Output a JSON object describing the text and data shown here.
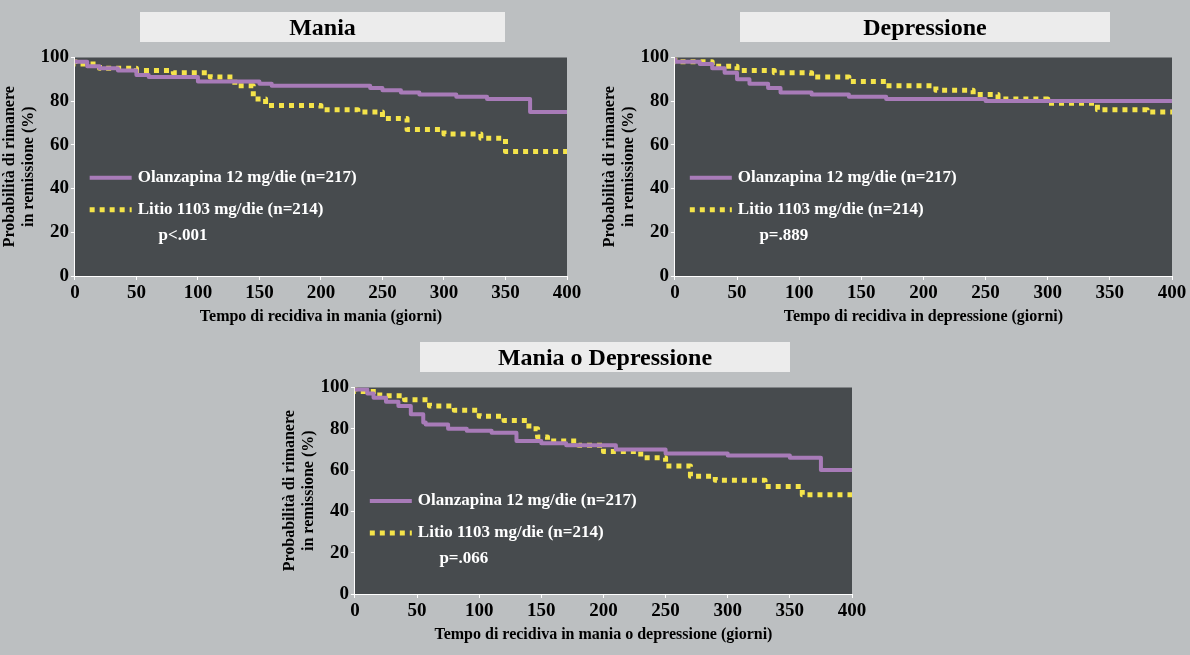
{
  "chart_data": [
    {
      "type": "step",
      "title": "Mania",
      "xlabel": "Tempo di recidiva in mania (giorni)",
      "ylabel": "Probabilità di rimanere\nin remissione (%)",
      "xlim": [
        0,
        400
      ],
      "xticks": [
        0,
        50,
        100,
        150,
        200,
        250,
        300,
        350,
        400
      ],
      "ylim": [
        0,
        100
      ],
      "yticks": [
        0,
        20,
        40,
        60,
        80,
        100
      ],
      "grid": false,
      "legend": "bottom left",
      "annotations": [
        "p<.001"
      ],
      "series": [
        {
          "name": "Olanzapina 12 mg/die (n=217)",
          "color": "#a87bb8",
          "line_style": "solid",
          "x": [
            0,
            10,
            20,
            35,
            50,
            60,
            100,
            150,
            160,
            240,
            250,
            265,
            280,
            310,
            335,
            370,
            382,
            400
          ],
          "values": [
            99,
            98,
            96,
            95,
            94,
            92,
            91,
            89,
            88,
            87,
            86,
            85,
            84,
            83,
            82,
            81,
            75,
            75
          ]
        },
        {
          "name": "Litio 1103 mg/die (n=214)",
          "color": "#f5e44a",
          "line_style": "dotted",
          "x": [
            0,
            20,
            50,
            80,
            110,
            130,
            145,
            155,
            200,
            230,
            250,
            270,
            300,
            330,
            350,
            370,
            400
          ],
          "values": [
            99,
            97,
            95,
            94,
            93,
            91,
            87,
            81,
            78,
            76,
            75,
            72,
            67,
            65,
            63,
            57,
            57
          ]
        }
      ]
    },
    {
      "type": "step",
      "title": "Depressione",
      "xlabel": "Tempo di recidiva in depressione (giorni)",
      "ylabel": "Probabilità di rimanere\nin remissione (%)",
      "xlim": [
        0,
        400
      ],
      "xticks": [
        0,
        50,
        100,
        150,
        200,
        250,
        300,
        350,
        400
      ],
      "ylim": [
        0,
        100
      ],
      "yticks": [
        0,
        20,
        40,
        60,
        80,
        100
      ],
      "grid": false,
      "legend": "bottom left",
      "annotations": [
        "p=.889"
      ],
      "series": [
        {
          "name": "Olanzapina 12 mg/die (n=217)",
          "color": "#a87bb8",
          "line_style": "solid",
          "x": [
            0,
            20,
            30,
            40,
            50,
            60,
            75,
            85,
            110,
            140,
            170,
            250,
            310,
            400
          ],
          "values": [
            100,
            98,
            97,
            95,
            93,
            90,
            88,
            86,
            84,
            83,
            82,
            81,
            80,
            80
          ]
        },
        {
          "name": "Litio 1103 mg/die (n=214)",
          "color": "#f5e44a",
          "line_style": "dotted",
          "x": [
            0,
            30,
            50,
            80,
            110,
            140,
            170,
            210,
            240,
            260,
            300,
            340,
            380,
            400
          ],
          "values": [
            100,
            98,
            96,
            94,
            93,
            91,
            89,
            87,
            85,
            83,
            81,
            79,
            76,
            75
          ]
        }
      ]
    },
    {
      "type": "step",
      "title": "Mania o Depressione",
      "xlabel": "Tempo di recidiva in mania o depressione (giorni)",
      "ylabel": "Probabilità di rimanere\nin remissione (%)",
      "xlim": [
        0,
        400
      ],
      "xticks": [
        0,
        50,
        100,
        150,
        200,
        250,
        300,
        350,
        400
      ],
      "ylim": [
        0,
        100
      ],
      "yticks": [
        0,
        20,
        40,
        60,
        80,
        100
      ],
      "grid": false,
      "legend": "bottom left",
      "annotations": [
        "p=.066"
      ],
      "series": [
        {
          "name": "Olanzapina 12 mg/die (n=217)",
          "color": "#a87bb8",
          "line_style": "solid",
          "x": [
            0,
            10,
            15,
            25,
            35,
            45,
            55,
            57,
            75,
            90,
            110,
            130,
            150,
            170,
            210,
            250,
            300,
            350,
            375,
            382,
            400
          ],
          "values": [
            100,
            99,
            97,
            95,
            93,
            91,
            87,
            83,
            82,
            80,
            79,
            78,
            74,
            73,
            72,
            70,
            68,
            67,
            66,
            60,
            60
          ]
        },
        {
          "name": "Litio 1103 mg/die (n=214)",
          "color": "#f5e44a",
          "line_style": "dotted",
          "x": [
            0,
            20,
            40,
            60,
            80,
            100,
            120,
            140,
            147,
            155,
            180,
            200,
            230,
            250,
            270,
            290,
            330,
            360,
            375,
            400
          ],
          "values": [
            100,
            98,
            96,
            94,
            91,
            89,
            86,
            84,
            80,
            76,
            74,
            72,
            69,
            66,
            62,
            57,
            55,
            52,
            48,
            48
          ]
        }
      ]
    }
  ]
}
